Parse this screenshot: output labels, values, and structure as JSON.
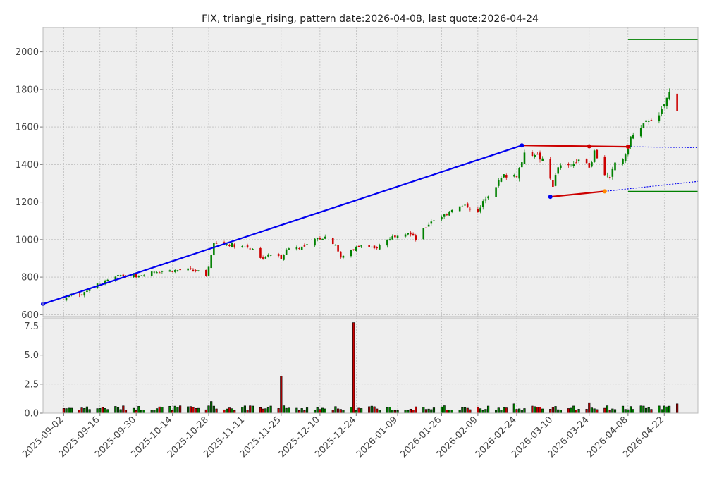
{
  "chart_data": {
    "type": "candlestick",
    "title": "FIX, triangle_rising, pattern date:2026-04-08, last quote:2026-04-24",
    "grid": true,
    "colors": {
      "up": "#008000",
      "down": "#cc0000",
      "trendline": "#0000ee",
      "pattern_line": "#cc0000",
      "target_line": "#008000",
      "panel_bg": "#eeeeee"
    },
    "price_panel": {
      "ylim": [
        590,
        2130
      ],
      "yticks": [
        600,
        800,
        1000,
        1200,
        1400,
        1600,
        1800,
        2000
      ]
    },
    "volume_panel": {
      "ylim": [
        0,
        8.2
      ],
      "yticks": [
        0.0,
        2.5,
        5.0,
        7.5
      ],
      "ytick_labels": [
        "0.0",
        "2.5",
        "5.0",
        "7.5"
      ]
    },
    "x_range": [
      "2025-08-25",
      "2026-05-05"
    ],
    "xtick_labels": [
      "2025-09-02",
      "2025-09-16",
      "2025-09-30",
      "2025-10-14",
      "2025-10-28",
      "2025-11-11",
      "2025-11-25",
      "2025-12-10",
      "2025-12-24",
      "2026-01-09",
      "2026-01-26",
      "2026-02-09",
      "2026-02-24",
      "2026-03-10",
      "2026-03-24",
      "2026-04-08",
      "2026-04-22"
    ],
    "close_anchors": [
      [
        "2025-09-02",
        680
      ],
      [
        "2025-09-05",
        715
      ],
      [
        "2025-09-09",
        705
      ],
      [
        "2025-09-12",
        745
      ],
      [
        "2025-09-18",
        775
      ],
      [
        "2025-09-24",
        810
      ],
      [
        "2025-09-30",
        805
      ],
      [
        "2025-10-06",
        830
      ],
      [
        "2025-10-14",
        835
      ],
      [
        "2025-10-20",
        840
      ],
      [
        "2025-10-24",
        830
      ],
      [
        "2025-10-27",
        800
      ],
      [
        "2025-10-30",
        980
      ],
      [
        "2025-11-05",
        975
      ],
      [
        "2025-11-10",
        965
      ],
      [
        "2025-11-14",
        955
      ],
      [
        "2025-11-17",
        900
      ],
      [
        "2025-11-21",
        920
      ],
      [
        "2025-11-25",
        905
      ],
      [
        "2025-11-28",
        960
      ],
      [
        "2025-12-04",
        960
      ],
      [
        "2025-12-09",
        1005
      ],
      [
        "2025-12-12",
        1015
      ],
      [
        "2025-12-16",
        975
      ],
      [
        "2025-12-18",
        900
      ],
      [
        "2025-12-22",
        945
      ],
      [
        "2025-12-26",
        970
      ],
      [
        "2025-12-31",
        950
      ],
      [
        "2026-01-05",
        1000
      ],
      [
        "2026-01-09",
        1030
      ],
      [
        "2026-01-13",
        1040
      ],
      [
        "2026-01-16",
        1000
      ],
      [
        "2026-01-22",
        1100
      ],
      [
        "2026-01-27",
        1130
      ],
      [
        "2026-01-30",
        1165
      ],
      [
        "2026-02-05",
        1180
      ],
      [
        "2026-02-09",
        1140
      ],
      [
        "2026-02-12",
        1225
      ],
      [
        "2026-02-16",
        1290
      ],
      [
        "2026-02-19",
        1340
      ],
      [
        "2026-02-24",
        1345
      ],
      [
        "2026-02-27",
        1450
      ],
      [
        "2026-03-03",
        1460
      ],
      [
        "2026-03-06",
        1420
      ],
      [
        "2026-03-10",
        1290
      ],
      [
        "2026-03-12",
        1385
      ],
      [
        "2026-03-17",
        1390
      ],
      [
        "2026-03-20",
        1440
      ],
      [
        "2026-03-24",
        1380
      ],
      [
        "2026-03-26",
        1470
      ],
      [
        "2026-03-30",
        1350
      ],
      [
        "2026-04-01",
        1320
      ],
      [
        "2026-04-03",
        1410
      ],
      [
        "2026-04-07",
        1440
      ],
      [
        "2026-04-09",
        1545
      ],
      [
        "2026-04-13",
        1590
      ],
      [
        "2026-04-16",
        1640
      ],
      [
        "2026-04-20",
        1650
      ],
      [
        "2026-04-22",
        1720
      ],
      [
        "2026-04-24",
        1780
      ],
      [
        "2026-04-27",
        1700
      ]
    ],
    "volume_spikes": [
      [
        "2025-10-29",
        1.0
      ],
      [
        "2025-11-25",
        3.2
      ],
      [
        "2025-12-23",
        7.8
      ],
      [
        "2026-02-23",
        0.8
      ],
      [
        "2026-03-24",
        0.9
      ],
      [
        "2026-04-27",
        0.8
      ]
    ],
    "overlays": [
      {
        "name": "trendline",
        "style": "solid",
        "color": "#0000ee",
        "points": [
          [
            "2025-08-25",
            657
          ],
          [
            "2026-02-26",
            1502
          ]
        ]
      },
      {
        "name": "triangle_upper",
        "style": "solid",
        "color": "#cc0000",
        "points": [
          [
            "2026-02-26",
            1502
          ],
          [
            "2026-04-08",
            1495
          ]
        ]
      },
      {
        "name": "triangle_lower",
        "style": "solid",
        "color": "#cc0000",
        "points": [
          [
            "2026-03-09",
            1228
          ],
          [
            "2026-03-30",
            1257
          ]
        ]
      },
      {
        "name": "upper_projection",
        "style": "dotted",
        "color": "#0000ee",
        "points": [
          [
            "2026-04-08",
            1495
          ],
          [
            "2026-05-05",
            1490
          ]
        ]
      },
      {
        "name": "lower_projection",
        "style": "dotted",
        "color": "#0000ee",
        "points": [
          [
            "2026-03-30",
            1257
          ],
          [
            "2026-05-05",
            1310
          ]
        ]
      },
      {
        "name": "target_upper",
        "style": "solid",
        "color": "#008000",
        "points": [
          [
            "2026-04-08",
            2065
          ],
          [
            "2026-05-05",
            2065
          ]
        ]
      },
      {
        "name": "target_lower",
        "style": "solid",
        "color": "#008000",
        "points": [
          [
            "2026-04-08",
            1257
          ],
          [
            "2026-05-05",
            1257
          ]
        ]
      }
    ],
    "markers": [
      {
        "date": "2025-08-25",
        "y": 657,
        "color": "#0000ee"
      },
      {
        "date": "2026-02-26",
        "y": 1502,
        "color": "#0000ee"
      },
      {
        "date": "2026-03-09",
        "y": 1228,
        "color": "#0000ee"
      },
      {
        "date": "2026-03-24",
        "y": 1497,
        "color": "#cc0000"
      },
      {
        "date": "2026-03-30",
        "y": 1257,
        "color": "#ff8800"
      },
      {
        "date": "2026-04-08",
        "y": 1495,
        "color": "#cc0000"
      }
    ]
  }
}
